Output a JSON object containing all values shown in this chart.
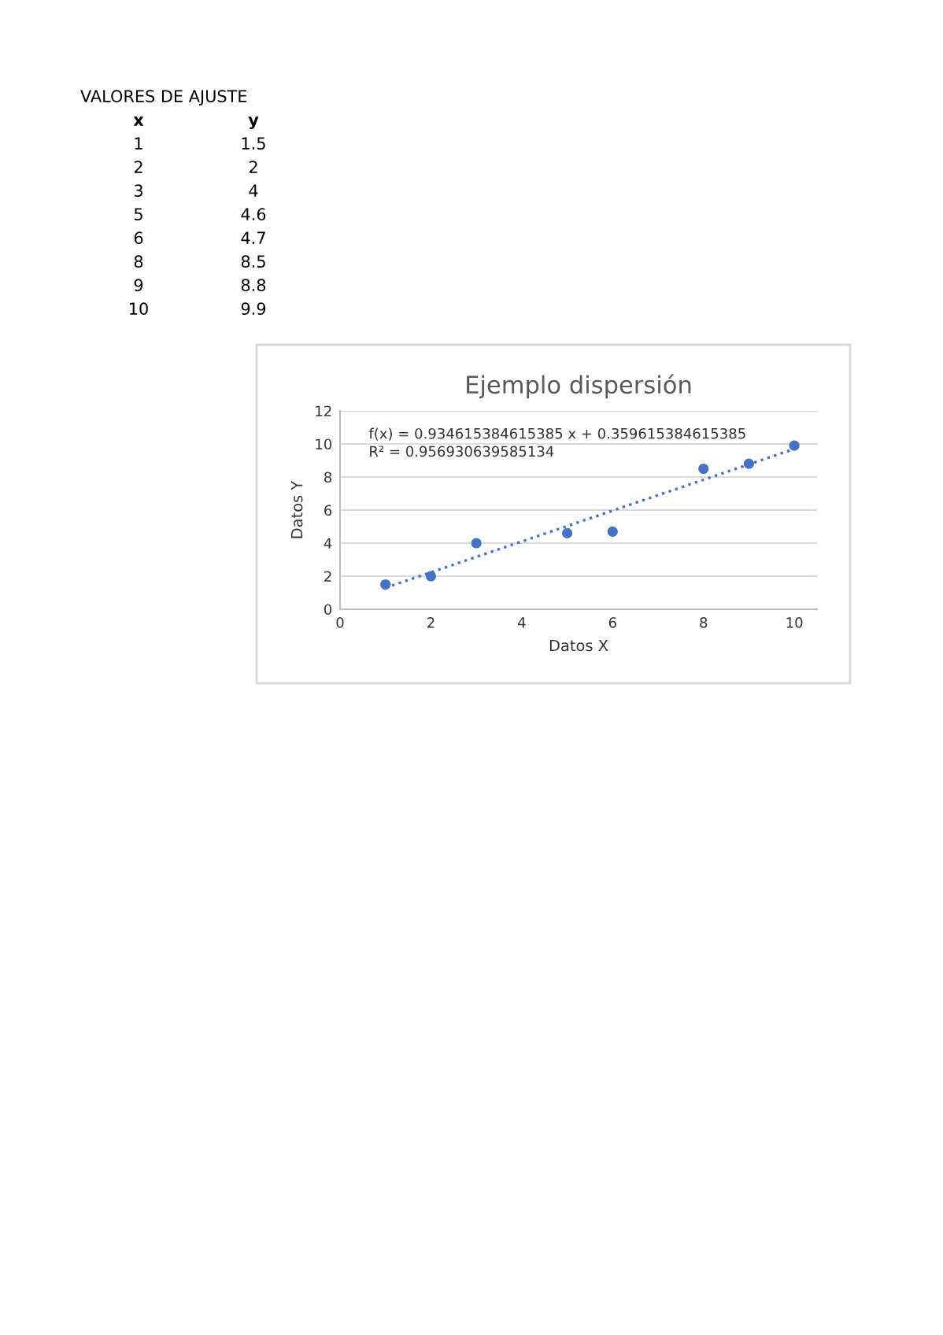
{
  "chart_data": {
    "type": "scatter",
    "title": "Ejemplo dispersión",
    "xlabel": "Datos X",
    "ylabel": "Datos Y",
    "annotations": [
      "VALORES DE AJUSTE",
      "x",
      "y",
      "1",
      "1.5",
      "2",
      "2",
      "3",
      "4",
      "5",
      "4.6",
      "6",
      "4.7",
      "8",
      "8.5",
      "9",
      "8.8",
      "10",
      "9.9",
      "f(x) = 0.934615384615385 x + 0.359615384615385",
      "R² = 0.956930639585134"
    ],
    "x": [
      1,
      2,
      3,
      5,
      6,
      8,
      9,
      10
    ],
    "series": [
      {
        "color": "#4472c4",
        "values": [
          1.5,
          2,
          4,
          4.6,
          4.7,
          8.5,
          8.8,
          9.9
        ],
        "marker": "circle"
      },
      {
        "type": "line",
        "color": "#4472c4",
        "x": [
          1,
          10
        ],
        "values": [
          1.3,
          9.7
        ],
        "line_style": "dotted",
        "marker": "none"
      }
    ],
    "xlim": [
      0,
      10.5
    ],
    "xticks": [
      0,
      2,
      4,
      6,
      8,
      10
    ],
    "ylim": [
      0,
      12
    ],
    "yticks": [
      0,
      2,
      4,
      6,
      8,
      10,
      12
    ],
    "grid": "y",
    "legend": false
  }
}
